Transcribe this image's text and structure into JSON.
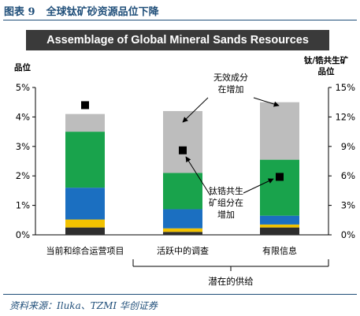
{
  "figure_title": {
    "number": "图表 9",
    "text": "全球钛矿砂资源品位下降"
  },
  "source": "资料来源：Iluka、TZMI 华创证券",
  "chart_data": {
    "type": "bar",
    "stacked": true,
    "title": "Assemblage of Global Mineral Sands Resources",
    "categories": [
      "当前和综合运营项目",
      "活跃中的调查",
      "有限信息"
    ],
    "group_label": "潜在的供给",
    "y_left": {
      "label": "品位",
      "ticks": [
        "5%",
        "4%",
        "3%",
        "2%",
        "1%",
        "0%"
      ],
      "range": [
        0,
        5
      ]
    },
    "y_right": {
      "label": [
        "钛/锆共生矿",
        "品位"
      ],
      "ticks": [
        "15%",
        "12%",
        "9%",
        "6%",
        "3%",
        "0%"
      ],
      "range": [
        0,
        15
      ]
    },
    "segment_colors": [
      "#2e2e2e",
      "#f2c200",
      "#1b6fc1",
      "#19a34c",
      "#bdbdbd"
    ],
    "series": [
      {
        "values": [
          0.25,
          0.1,
          0.25
        ]
      },
      {
        "values": [
          0.27,
          0.12,
          0.1
        ]
      },
      {
        "values": [
          1.08,
          0.65,
          0.3
        ]
      },
      {
        "values": [
          1.9,
          1.23,
          1.9
        ]
      },
      {
        "values": [
          0.6,
          2.1,
          1.95
        ]
      }
    ],
    "markers": {
      "axis": "right",
      "values": [
        13.2,
        8.6,
        5.9
      ],
      "color": "#000000"
    },
    "annotations": [
      {
        "lines": [
          "无效成分",
          "在增加"
        ]
      },
      {
        "lines": [
          "钛锆共生",
          "矿组分在",
          "增加"
        ]
      }
    ],
    "grid": false
  },
  "colors": {
    "title_blue": "#1f4e79",
    "title_bar": "#3a3a3a"
  }
}
